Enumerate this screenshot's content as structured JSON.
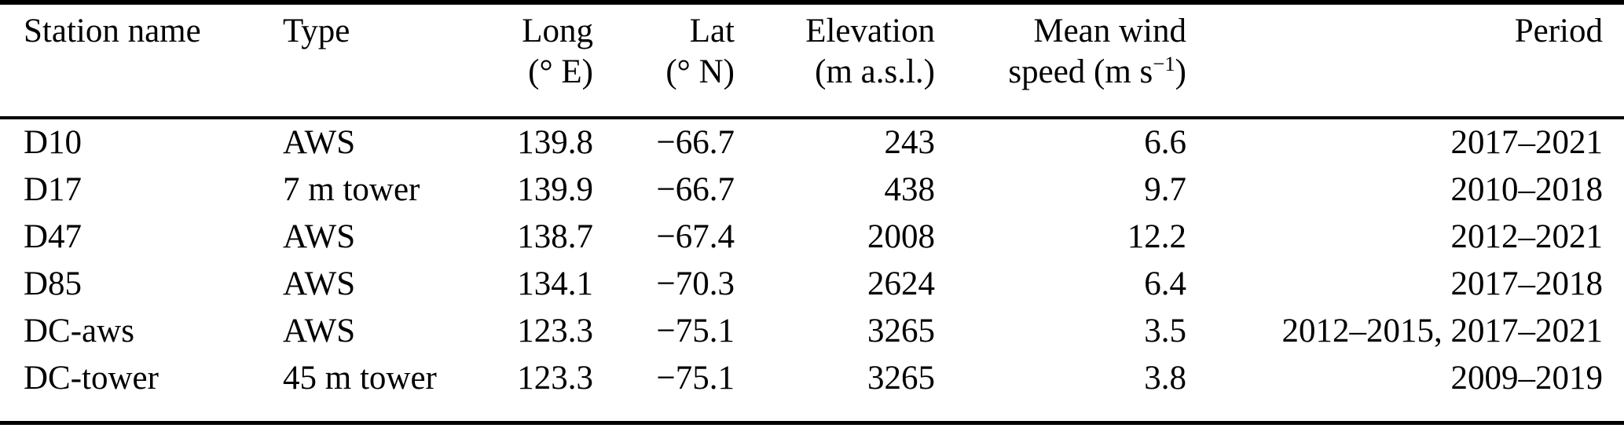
{
  "page": {
    "background_color": "#ffffff",
    "text_color": "#000000",
    "rule_color": "#000000"
  },
  "table": {
    "columns": [
      {
        "line1": "Station name",
        "align": "left"
      },
      {
        "line1": "Type",
        "align": "left"
      },
      {
        "line1": "Long",
        "line2": "(° E)",
        "align": "right"
      },
      {
        "line1": "Lat",
        "line2": "(° N)",
        "align": "right"
      },
      {
        "line1": "Elevation",
        "line2": "(m a.s.l.)",
        "align": "right"
      },
      {
        "line1": "Mean wind",
        "line2_pre": "speed (m s",
        "line2_sup": "−1",
        "line2_post": ")",
        "align": "right"
      },
      {
        "line1": "Period",
        "align": "right"
      }
    ],
    "rows": [
      {
        "station": "D10",
        "type": "AWS",
        "long": "139.8",
        "lat": "−66.7",
        "elevation": "243",
        "mean_wind_speed": "6.6",
        "period": "2017–2021"
      },
      {
        "station": "D17",
        "type": "7 m tower",
        "long": "139.9",
        "lat": "−66.7",
        "elevation": "438",
        "mean_wind_speed": "9.7",
        "period": "2010–2018"
      },
      {
        "station": "D47",
        "type": "AWS",
        "long": "138.7",
        "lat": "−67.4",
        "elevation": "2008",
        "mean_wind_speed": "12.2",
        "period": "2012–2021"
      },
      {
        "station": "D85",
        "type": "AWS",
        "long": "134.1",
        "lat": "−70.3",
        "elevation": "2624",
        "mean_wind_speed": "6.4",
        "period": "2017–2018"
      },
      {
        "station": "DC-aws",
        "type": "AWS",
        "long": "123.3",
        "lat": "−75.1",
        "elevation": "3265",
        "mean_wind_speed": "3.5",
        "period": "2012–2015, 2017–2021"
      },
      {
        "station": "DC-tower",
        "type": "45 m tower",
        "long": "123.3",
        "lat": "−75.1",
        "elevation": "3265",
        "mean_wind_speed": "3.8",
        "period": "2009–2019"
      }
    ]
  }
}
